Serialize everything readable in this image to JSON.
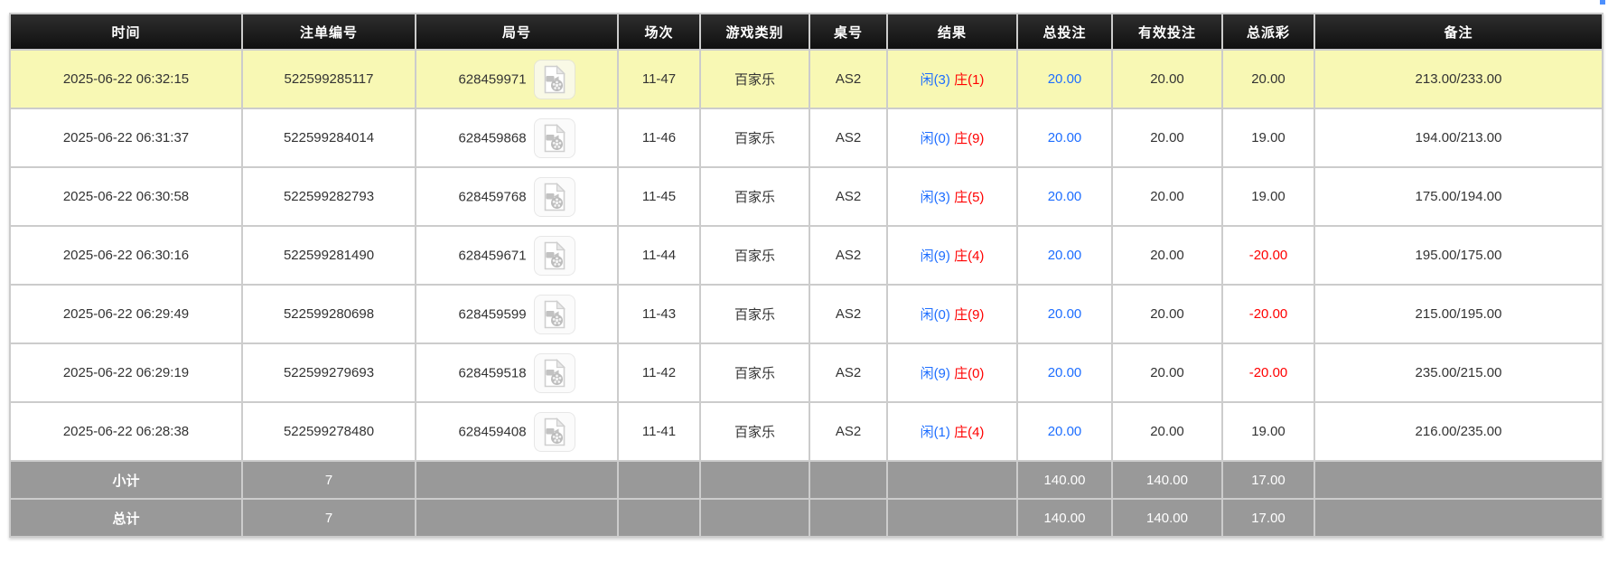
{
  "colors": {
    "header_bg": "#1c1c1c",
    "header_text": "#ffffff",
    "highlight_row_bg": "#f8f8b4",
    "summary_bg": "#999999",
    "summary_text": "#ffffff",
    "grid_border": "#cccccc",
    "player_blue": "#1e6eff",
    "banker_red": "#ff0000",
    "negative_red": "#ff0000",
    "bet_blue": "#1e6eff",
    "body_text": "#333333"
  },
  "table": {
    "columns": [
      {
        "key": "time",
        "label": "时间"
      },
      {
        "key": "order_no",
        "label": "注单编号"
      },
      {
        "key": "round_no",
        "label": "局号"
      },
      {
        "key": "session",
        "label": "场次"
      },
      {
        "key": "game_type",
        "label": "游戏类别"
      },
      {
        "key": "table_no",
        "label": "桌号"
      },
      {
        "key": "result",
        "label": "结果"
      },
      {
        "key": "total_bet",
        "label": "总投注"
      },
      {
        "key": "valid_bet",
        "label": "有效投注"
      },
      {
        "key": "total_payout",
        "label": "总派彩"
      },
      {
        "key": "remark",
        "label": "备注"
      }
    ],
    "rows": [
      {
        "time": "2025-06-22 06:32:15",
        "order_no": "522599285117",
        "round_no": "628459971",
        "session": "11-47",
        "game_type": "百家乐",
        "table_no": "AS2",
        "result_player": "闲(3)",
        "result_banker": "庄(1)",
        "total_bet": "20.00",
        "valid_bet": "20.00",
        "total_payout": "20.00",
        "remark": "213.00/233.00",
        "highlighted": true
      },
      {
        "time": "2025-06-22 06:31:37",
        "order_no": "522599284014",
        "round_no": "628459868",
        "session": "11-46",
        "game_type": "百家乐",
        "table_no": "AS2",
        "result_player": "闲(0)",
        "result_banker": "庄(9)",
        "total_bet": "20.00",
        "valid_bet": "20.00",
        "total_payout": "19.00",
        "remark": "194.00/213.00",
        "highlighted": false
      },
      {
        "time": "2025-06-22 06:30:58",
        "order_no": "522599282793",
        "round_no": "628459768",
        "session": "11-45",
        "game_type": "百家乐",
        "table_no": "AS2",
        "result_player": "闲(3)",
        "result_banker": "庄(5)",
        "total_bet": "20.00",
        "valid_bet": "20.00",
        "total_payout": "19.00",
        "remark": "175.00/194.00",
        "highlighted": false
      },
      {
        "time": "2025-06-22 06:30:16",
        "order_no": "522599281490",
        "round_no": "628459671",
        "session": "11-44",
        "game_type": "百家乐",
        "table_no": "AS2",
        "result_player": "闲(9)",
        "result_banker": "庄(4)",
        "total_bet": "20.00",
        "valid_bet": "20.00",
        "total_payout": "-20.00",
        "remark": "195.00/175.00",
        "highlighted": false
      },
      {
        "time": "2025-06-22 06:29:49",
        "order_no": "522599280698",
        "round_no": "628459599",
        "session": "11-43",
        "game_type": "百家乐",
        "table_no": "AS2",
        "result_player": "闲(0)",
        "result_banker": "庄(9)",
        "total_bet": "20.00",
        "valid_bet": "20.00",
        "total_payout": "-20.00",
        "remark": "215.00/195.00",
        "highlighted": false
      },
      {
        "time": "2025-06-22 06:29:19",
        "order_no": "522599279693",
        "round_no": "628459518",
        "session": "11-42",
        "game_type": "百家乐",
        "table_no": "AS2",
        "result_player": "闲(9)",
        "result_banker": "庄(0)",
        "total_bet": "20.00",
        "valid_bet": "20.00",
        "total_payout": "-20.00",
        "remark": "235.00/215.00",
        "highlighted": false
      },
      {
        "time": "2025-06-22 06:28:38",
        "order_no": "522599278480",
        "round_no": "628459408",
        "session": "11-41",
        "game_type": "百家乐",
        "table_no": "AS2",
        "result_player": "闲(1)",
        "result_banker": "庄(4)",
        "total_bet": "20.00",
        "valid_bet": "20.00",
        "total_payout": "19.00",
        "remark": "216.00/235.00",
        "highlighted": false
      }
    ],
    "summary_rows": [
      {
        "label": "小计",
        "count": "7",
        "total_bet": "140.00",
        "valid_bet": "140.00",
        "total_payout": "17.00"
      },
      {
        "label": "总计",
        "count": "7",
        "total_bet": "140.00",
        "valid_bet": "140.00",
        "total_payout": "17.00"
      }
    ]
  }
}
